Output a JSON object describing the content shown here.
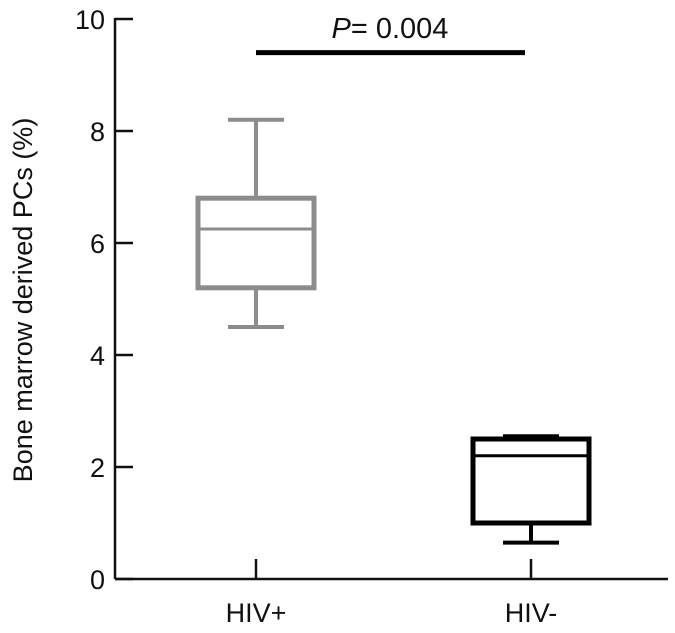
{
  "chart_data": {
    "type": "box",
    "title": "",
    "xlabel": "",
    "ylabel": "Bone marrow derived PCs (%)",
    "ylim": [
      0,
      10
    ],
    "yticks": [
      0,
      2,
      4,
      6,
      8,
      10
    ],
    "categories": [
      "HIV+",
      "HIV-"
    ],
    "boxes": [
      {
        "category": "HIV+",
        "min": 4.5,
        "q1": 5.2,
        "median": 6.25,
        "q3": 6.8,
        "max": 8.2,
        "color": "#8c8c8c"
      },
      {
        "category": "HIV-",
        "min": 0.65,
        "q1": 1.0,
        "median": 2.2,
        "q3": 2.5,
        "max": 2.55,
        "color": "#000000"
      }
    ],
    "significance": {
      "p_label": "P",
      "p_value": "= 0.004",
      "between": [
        "HIV+",
        "HIV-"
      ],
      "level": 9.4
    },
    "grid": false
  }
}
